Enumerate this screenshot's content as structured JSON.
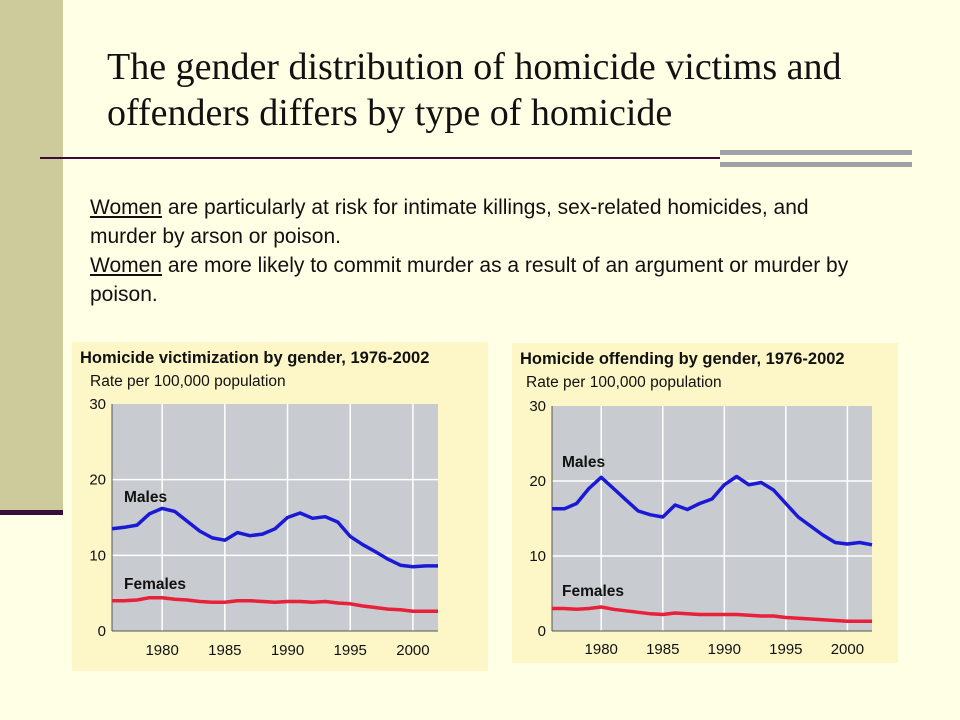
{
  "slide": {
    "title": "The gender distribution of homicide victims and offenders differs by type of homicide",
    "paragraph1_lead": "Women",
    "paragraph1_rest": " are particularly at risk for intimate killings, sex-related homicides, and murder by arson or poison.",
    "paragraph2_lead": "Women",
    "paragraph2_rest": " are more likely to commit murder as a result of an argument or murder by poison."
  },
  "colors": {
    "males": "#1a1ad6",
    "females": "#e8203a",
    "plot_bg": "#c8cbcf",
    "panel_bg": "#fdf7c8"
  },
  "chart_data": [
    {
      "type": "line",
      "title": "Homicide victimization by gender, 1976-2002",
      "ylabel": "Rate per 100,000 population",
      "xlabel": "",
      "xlim": [
        1976,
        2002
      ],
      "ylim": [
        0,
        30
      ],
      "xticks": [
        "1980",
        "1985",
        "1990",
        "1995",
        "2000"
      ],
      "yticks": [
        "0",
        "10",
        "20",
        "30"
      ],
      "grid": true,
      "x": [
        1976,
        1977,
        1978,
        1979,
        1980,
        1981,
        1982,
        1983,
        1984,
        1985,
        1986,
        1987,
        1988,
        1989,
        1990,
        1991,
        1992,
        1993,
        1994,
        1995,
        1996,
        1997,
        1998,
        1999,
        2000,
        2001,
        2002
      ],
      "series": [
        {
          "name": "Males",
          "values": [
            13.5,
            13.7,
            14.0,
            15.5,
            16.2,
            15.8,
            14.5,
            13.2,
            12.3,
            12.0,
            13.0,
            12.6,
            12.8,
            13.5,
            15.0,
            15.6,
            14.9,
            15.1,
            14.4,
            12.5,
            11.4,
            10.5,
            9.5,
            8.7,
            8.5,
            8.6,
            8.6
          ]
        },
        {
          "name": "Females",
          "values": [
            4.0,
            4.0,
            4.1,
            4.4,
            4.4,
            4.2,
            4.1,
            3.9,
            3.8,
            3.8,
            4.0,
            4.0,
            3.9,
            3.8,
            3.9,
            3.9,
            3.8,
            3.9,
            3.7,
            3.6,
            3.3,
            3.1,
            2.9,
            2.8,
            2.6,
            2.6,
            2.6
          ]
        }
      ]
    },
    {
      "type": "line",
      "title": "Homicide offending by gender, 1976-2002",
      "ylabel": "Rate per 100,000 population",
      "xlabel": "",
      "xlim": [
        1976,
        2002
      ],
      "ylim": [
        0,
        30
      ],
      "xticks": [
        "1980",
        "1985",
        "1990",
        "1995",
        "2000"
      ],
      "yticks": [
        "0",
        "10",
        "20",
        "30"
      ],
      "grid": true,
      "x": [
        1976,
        1977,
        1978,
        1979,
        1980,
        1981,
        1982,
        1983,
        1984,
        1985,
        1986,
        1987,
        1988,
        1989,
        1990,
        1991,
        1992,
        1993,
        1994,
        1995,
        1996,
        1997,
        1998,
        1999,
        2000,
        2001,
        2002
      ],
      "series": [
        {
          "name": "Males",
          "values": [
            16.3,
            16.3,
            17.0,
            19.0,
            20.5,
            19.0,
            17.5,
            16.0,
            15.5,
            15.2,
            16.8,
            16.2,
            17.0,
            17.6,
            19.5,
            20.6,
            19.5,
            19.8,
            18.8,
            17.0,
            15.2,
            14.0,
            12.8,
            11.8,
            11.6,
            11.8,
            11.5
          ]
        },
        {
          "name": "Females",
          "values": [
            3.0,
            3.0,
            2.9,
            3.0,
            3.2,
            2.9,
            2.7,
            2.5,
            2.3,
            2.2,
            2.4,
            2.3,
            2.2,
            2.2,
            2.2,
            2.2,
            2.1,
            2.0,
            2.0,
            1.8,
            1.7,
            1.6,
            1.5,
            1.4,
            1.3,
            1.3,
            1.3
          ]
        }
      ]
    }
  ]
}
